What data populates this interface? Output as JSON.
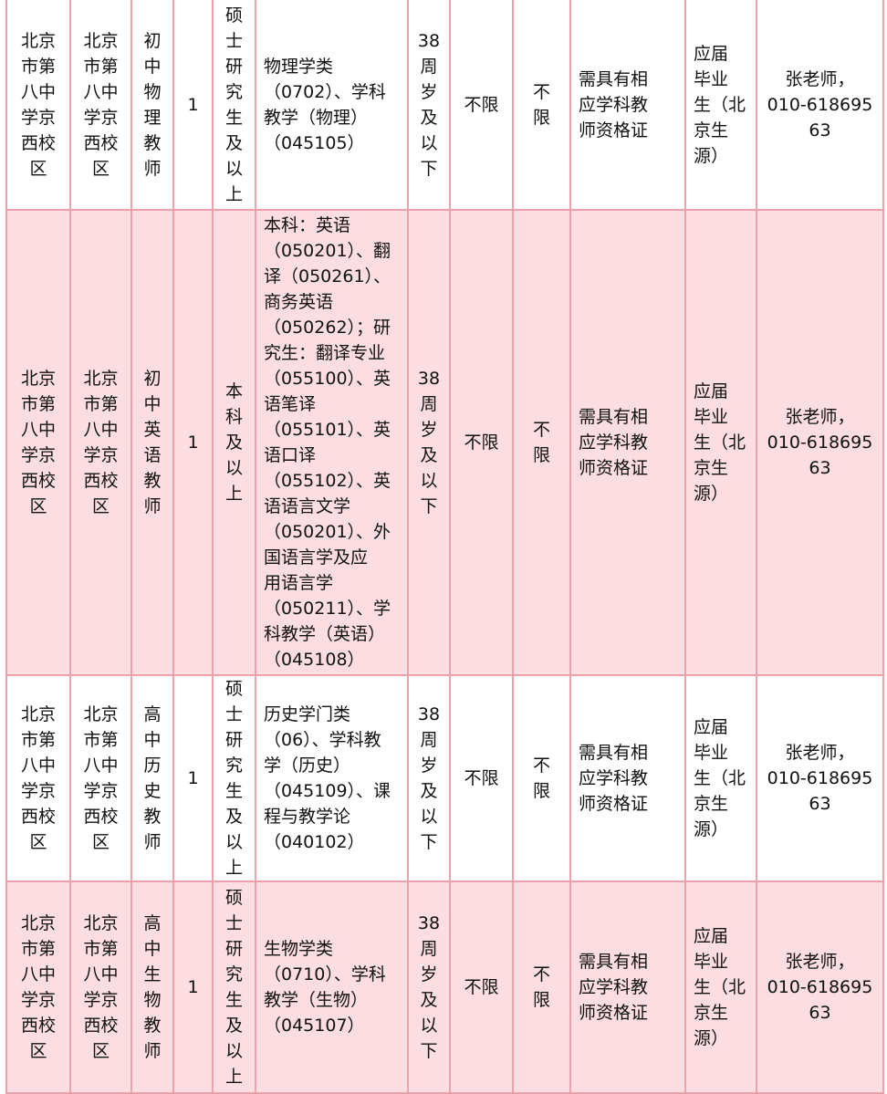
{
  "colors": {
    "row_alt_bg": "#fbdde2",
    "border": "#eda2ab"
  },
  "rows": [
    {
      "cells": [
        "北京\n市第\n八中\n学京\n西校\n区",
        "北京\n市第\n八中\n学京\n西校\n区",
        "初\n中\n物\n理\n教\n师",
        "1",
        "硕\n士\n研\n究\n生\n及\n以\n上",
        "物理学类\n（0702）、学科\n教学（物理）\n（045105）",
        "38\n周\n岁\n及\n以\n下",
        "不限",
        "不\n限",
        "需具有相\n应学科教\n师资格证",
        "应届\n毕业\n生（北\n京生\n源）",
        "张老师，\n010-618695\n63"
      ]
    },
    {
      "cells": [
        "北京\n市第\n八中\n学京\n西校\n区",
        "北京\n市第\n八中\n学京\n西校\n区",
        "初\n中\n英\n语\n教\n师",
        "1",
        "本\n科\n及\n以\n上",
        "本科：英语\n（050201）、翻\n译（050261）、\n商务英语\n（050262）；研\n究生：翻译专业\n（055100）、英\n语笔译\n（055101）、英\n语口译\n（055102）、英\n语语言文学\n（050201）、外\n国语言学及应\n用语言学\n（050211）、学\n科教学（英语）\n（045108）",
        "38\n周\n岁\n及\n以\n下",
        "不限",
        "不\n限",
        "需具有相\n应学科教\n师资格证",
        "应届\n毕业\n生（北\n京生\n源）",
        "张老师，\n010-618695\n63"
      ]
    },
    {
      "cells": [
        "北京\n市第\n八中\n学京\n西校\n区",
        "北京\n市第\n八中\n学京\n西校\n区",
        "高\n中\n历\n史\n教\n师",
        "1",
        "硕\n士\n研\n究\n生\n及\n以\n上",
        "历史学门类\n（06）、学科教\n学（历史）\n（045109）、课\n程与教学论\n（040102）",
        "38\n周\n岁\n及\n以\n下",
        "不限",
        "不\n限",
        "需具有相\n应学科教\n师资格证",
        "应届\n毕业\n生（北\n京生\n源）",
        "张老师，\n010-618695\n63"
      ]
    },
    {
      "cells": [
        "北京\n市第\n八中\n学京\n西校\n区",
        "北京\n市第\n八中\n学京\n西校\n区",
        "高\n中\n生\n物\n教\n师",
        "1",
        "硕\n士\n研\n究\n生\n及\n以\n上",
        "生物学类\n（0710）、学科\n教学（生物）\n（045107）",
        "38\n周\n岁\n及\n以\n下",
        "不限",
        "不\n限",
        "需具有相\n应学科教\n师资格证",
        "应届\n毕业\n生（北\n京生\n源）",
        "张老师，\n010-618695\n63"
      ]
    }
  ]
}
